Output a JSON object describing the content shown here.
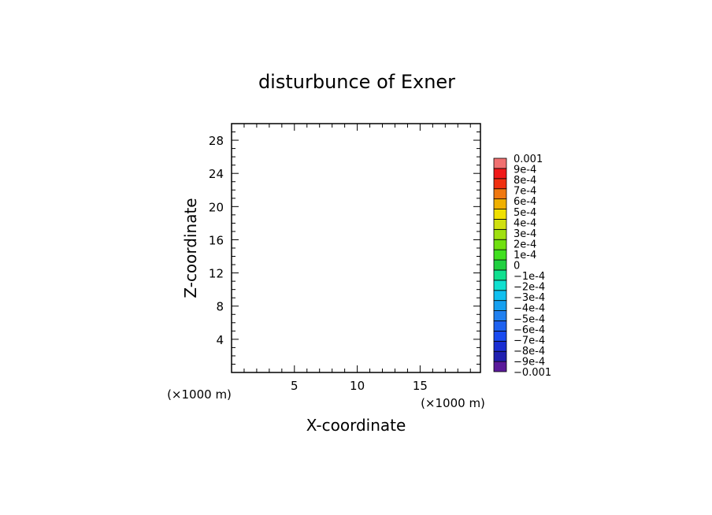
{
  "chart_data": {
    "type": "heatmap",
    "title": "disturbunce of Exner",
    "xlabel": "X-coordinate",
    "ylabel": "Z-coordinate",
    "x_unit": "(×1000 m)",
    "y_unit": "(×1000 m)",
    "xlim": [
      0,
      19.8
    ],
    "ylim": [
      0,
      30
    ],
    "x_ticks": [
      5,
      10,
      15
    ],
    "y_ticks": [
      4,
      8,
      12,
      16,
      20,
      24,
      28
    ],
    "field_values": [],
    "colorbar": {
      "levels": [
        "-0.001",
        "-9e-4",
        "-8e-4",
        "-7e-4",
        "-6e-4",
        "-5e-4",
        "-4e-4",
        "-3e-4",
        "-2e-4",
        "-1e-4",
        "0",
        "1e-4",
        "2e-4",
        "3e-4",
        "4e-4",
        "5e-4",
        "6e-4",
        "7e-4",
        "8e-4",
        "9e-4",
        "0.001"
      ],
      "colors": [
        "#5a1a9a",
        "#2020b0",
        "#1a2ed2",
        "#1a4bf0",
        "#1e62f0",
        "#2080f0",
        "#16a0f0",
        "#10c0f0",
        "#10e0d0",
        "#10e090",
        "#20d040",
        "#40e020",
        "#70e010",
        "#a0e010",
        "#d0e010",
        "#f0e000",
        "#f0b000",
        "#f07810",
        "#f03010",
        "#f01818",
        "#f07070"
      ]
    }
  }
}
